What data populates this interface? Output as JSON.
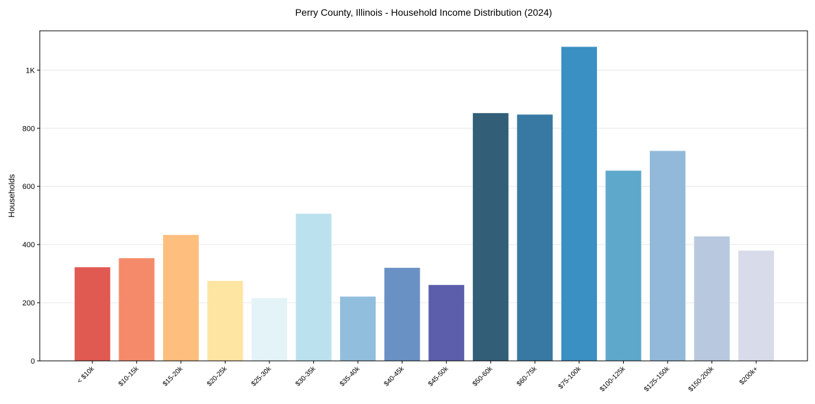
{
  "chart_data": {
    "type": "bar",
    "title": "Perry County, Illinois - Household Income Distribution (2024)",
    "xlabel": "",
    "ylabel": "Households",
    "ylim": [
      0,
      1135
    ],
    "grid": true,
    "yticks": [
      0,
      200,
      400,
      600,
      800,
      1000
    ],
    "ytick_labels": [
      "0",
      "200",
      "400",
      "600",
      "800",
      "1K"
    ],
    "categories": [
      "< $10k",
      "$10-15k",
      "$15-20k",
      "$20-25k",
      "$25-30k",
      "$30-35k",
      "$35-40k",
      "$40-45k",
      "$45-50k",
      "$50-60k",
      "$60-75k",
      "$75-100k",
      "$100-125k",
      "$125-150k",
      "$150-200k",
      "$200k+"
    ],
    "values": [
      322,
      353,
      433,
      275,
      216,
      506,
      221,
      320,
      261,
      852,
      847,
      1080,
      654,
      722,
      428,
      379
    ],
    "colors": [
      "#e05a52",
      "#f58a6a",
      "#fdbe7e",
      "#fee5a2",
      "#e4f3f8",
      "#bce1ee",
      "#91bedc",
      "#6a91c3",
      "#5c5eab",
      "#325f77",
      "#3779a2",
      "#3a8fc3",
      "#5ea8cb",
      "#92b9d9",
      "#b8c9df",
      "#d8dbe9"
    ]
  }
}
